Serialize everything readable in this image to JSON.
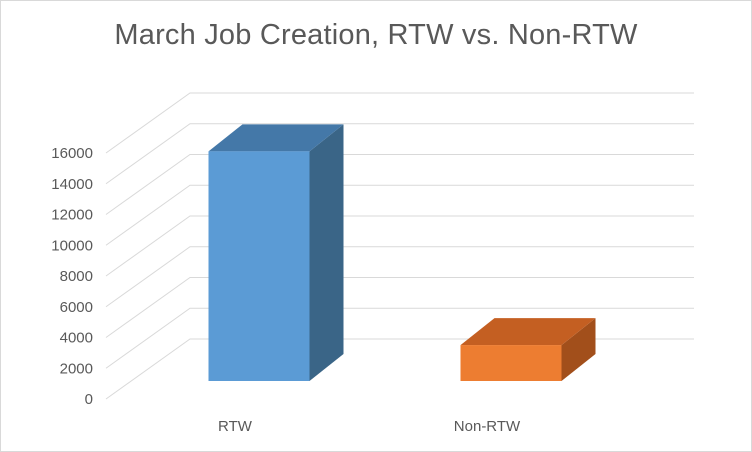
{
  "chart_data": {
    "type": "bar",
    "title": "March Job Creation, RTW vs. Non-RTW",
    "categories": [
      "RTW",
      "Non-RTW"
    ],
    "values": [
      14700,
      2300
    ],
    "ylim": [
      0,
      16000
    ],
    "yticks": [
      0,
      2000,
      4000,
      6000,
      8000,
      10000,
      12000,
      14000,
      16000
    ],
    "grid": true,
    "style": "3d-column",
    "colors": {
      "RTW": {
        "front": "#5b9bd5",
        "side": "#3a6587",
        "top": "#4478a8"
      },
      "Non-RTW": {
        "front": "#ed7d31",
        "side": "#a24f1b",
        "top": "#c45f22"
      }
    }
  }
}
